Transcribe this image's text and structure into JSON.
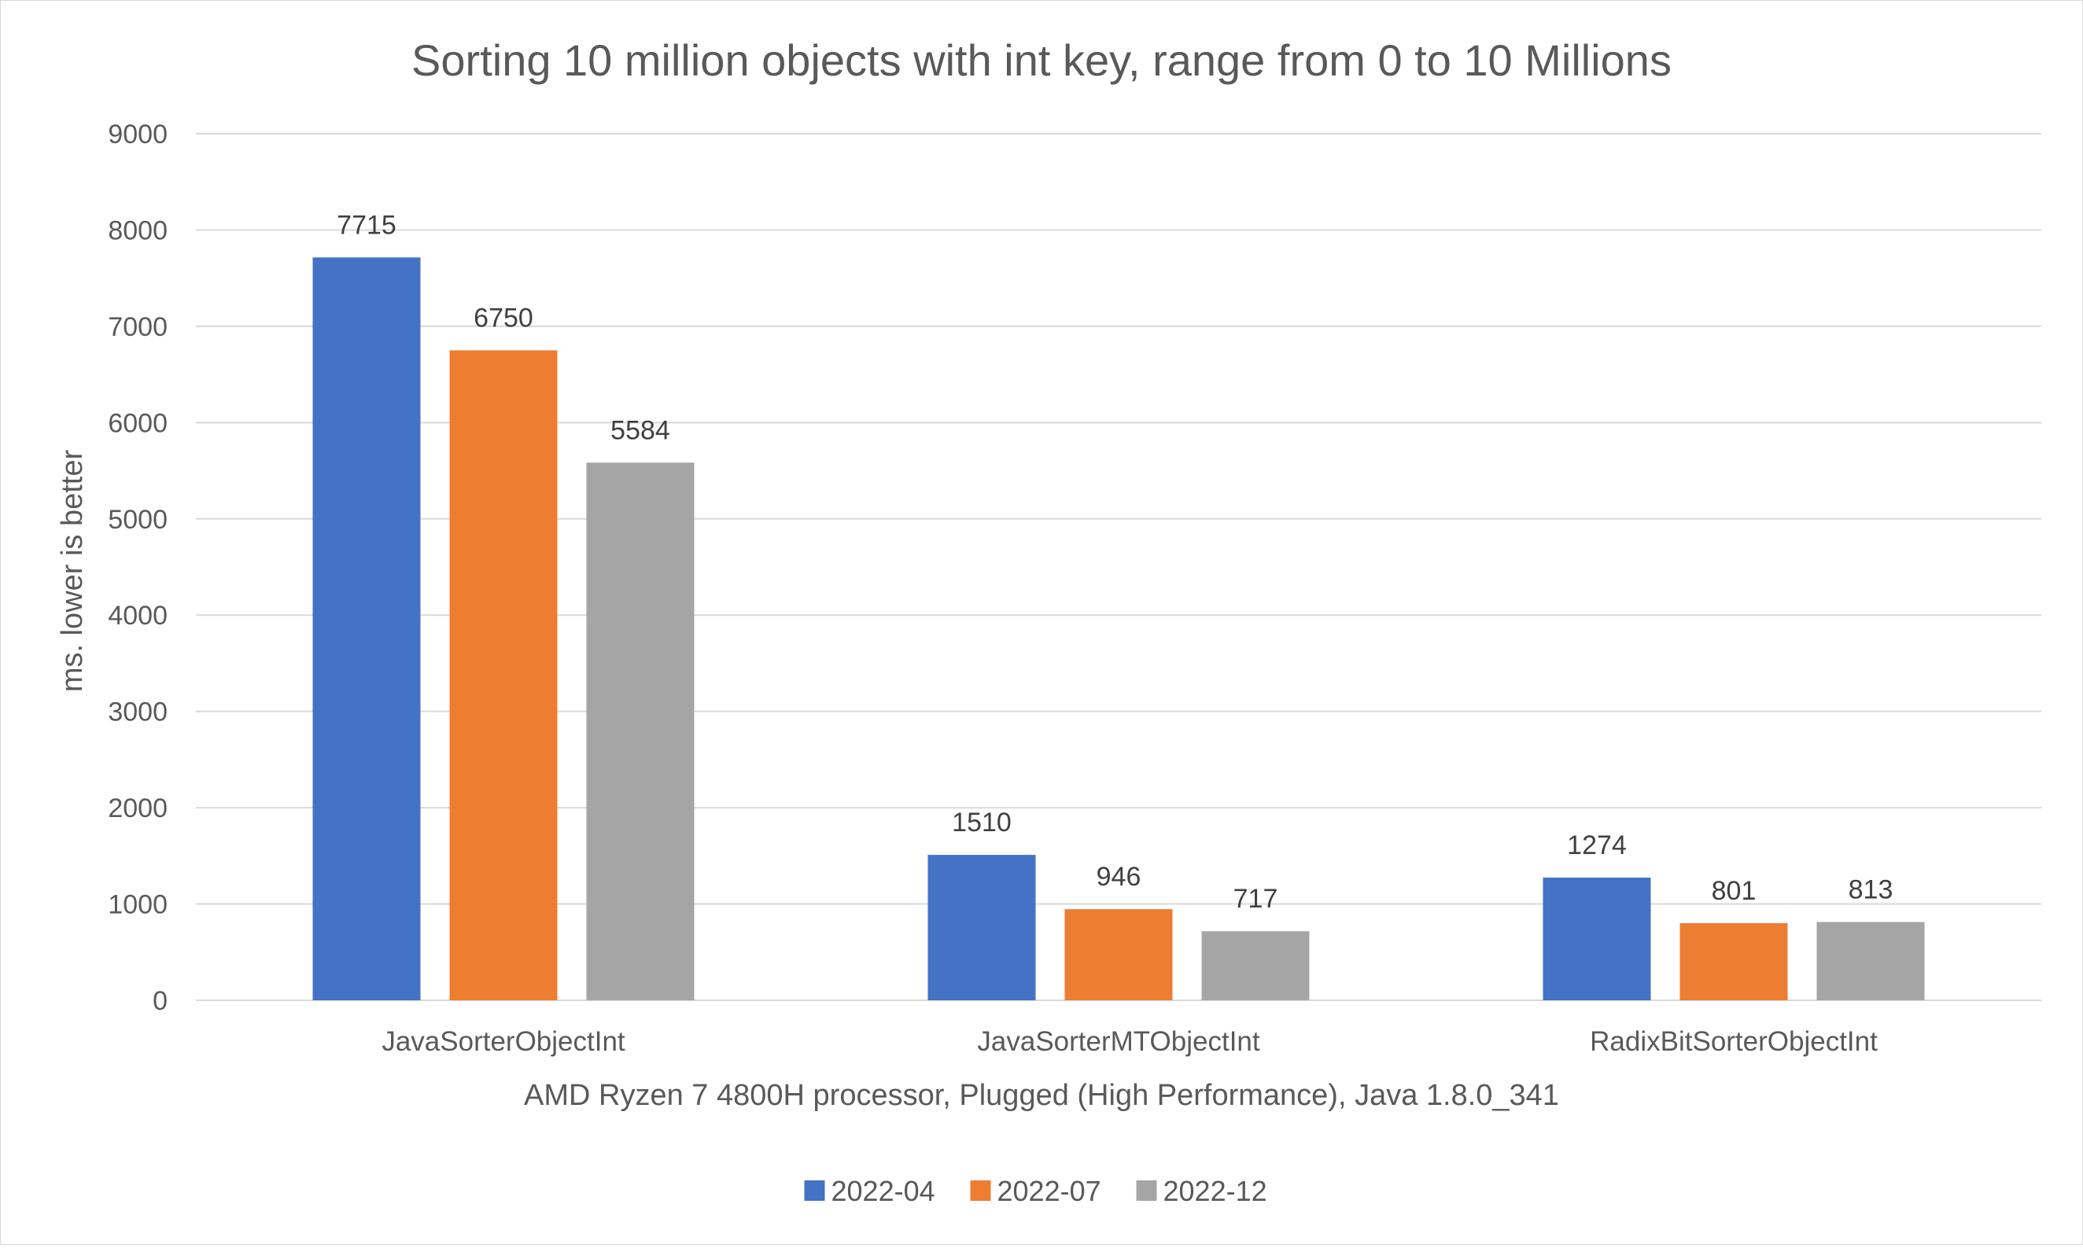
{
  "chart_data": {
    "type": "bar",
    "title": "Sorting 10 million objects with int key, range from 0 to 10 Millions",
    "xlabel": "AMD Ryzen 7 4800H processor, Plugged (High Performance), Java 1.8.0_341",
    "ylabel": "ms. lower is better",
    "categories": [
      "JavaSorterObjectInt",
      "JavaSorterMTObjectInt",
      "RadixBitSorterObjectInt"
    ],
    "series": [
      {
        "name": "2022-04",
        "color": "#4472C4",
        "values": [
          7715,
          1510,
          1274
        ]
      },
      {
        "name": "2022-07",
        "color": "#ED7D31",
        "values": [
          6750,
          946,
          801
        ]
      },
      {
        "name": "2022-12",
        "color": "#A5A5A5",
        "values": [
          5584,
          717,
          813
        ]
      }
    ],
    "ylim": [
      0,
      9000
    ],
    "yticks": [
      0,
      1000,
      2000,
      3000,
      4000,
      5000,
      6000,
      7000,
      8000,
      9000
    ],
    "grid": true,
    "legend_position": "bottom",
    "data_labels": true
  }
}
